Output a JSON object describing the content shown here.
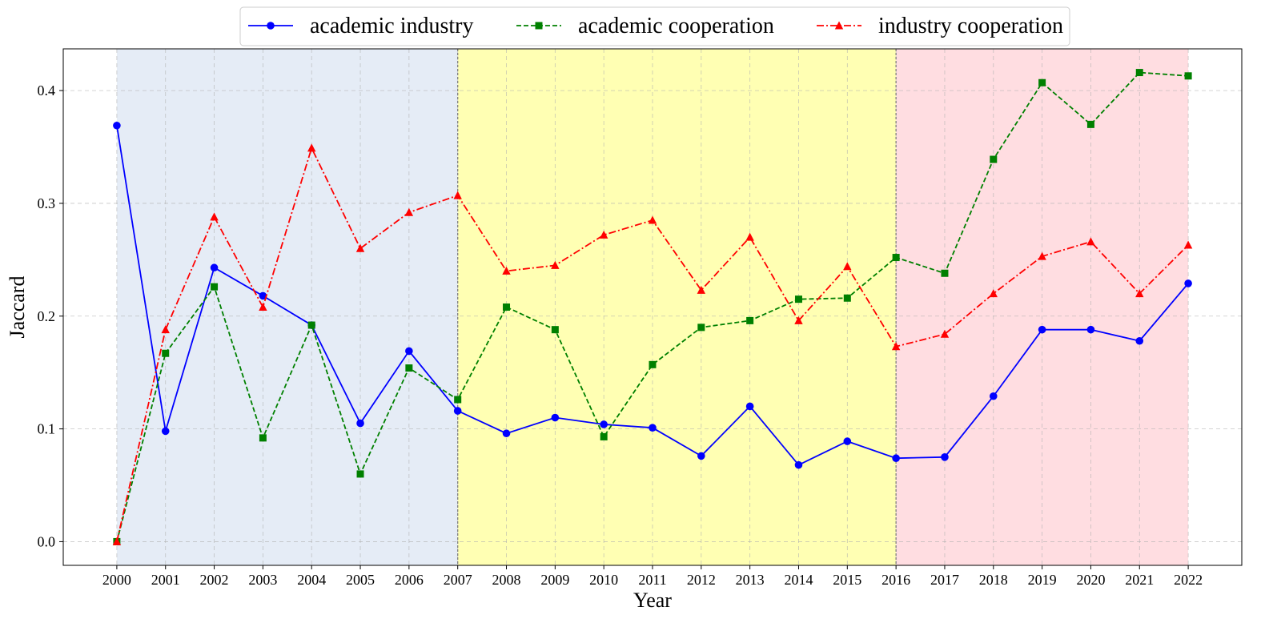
{
  "chart_data": {
    "type": "line",
    "title": "",
    "xlabel": "Year",
    "ylabel": "Jaccard",
    "x": [
      2000,
      2001,
      2002,
      2003,
      2004,
      2005,
      2006,
      2007,
      2008,
      2009,
      2010,
      2011,
      2012,
      2013,
      2014,
      2015,
      2016,
      2017,
      2018,
      2019,
      2020,
      2021,
      2022
    ],
    "xlim": [
      1998.9,
      2023.1
    ],
    "ylim": [
      -0.021,
      0.437
    ],
    "yticks": [
      "0.0",
      "0.1",
      "0.2",
      "0.3",
      "0.4"
    ],
    "ytick_values": [
      0.0,
      0.1,
      0.2,
      0.3,
      0.4
    ],
    "grid": true,
    "legend_position": "top-center, outside plot, single row",
    "shaded_periods": [
      {
        "start": 2000,
        "end": 2007,
        "color": "#e5ecf6"
      },
      {
        "start": 2007,
        "end": 2016,
        "color": "#ffffb3"
      },
      {
        "start": 2016,
        "end": 2022,
        "color": "#ffdde1"
      }
    ],
    "series": [
      {
        "name": "academic industry",
        "color": "#0000ff",
        "linestyle": "solid",
        "marker": "circle",
        "values": [
          0.369,
          0.098,
          0.243,
          0.218,
          0.192,
          0.105,
          0.169,
          0.116,
          0.096,
          0.11,
          0.104,
          0.101,
          0.076,
          0.12,
          0.068,
          0.089,
          0.074,
          0.075,
          0.129,
          0.188,
          0.188,
          0.178,
          0.229
        ]
      },
      {
        "name": "academic cooperation",
        "color": "#008000",
        "linestyle": "dashed",
        "marker": "square",
        "values": [
          0.0,
          0.167,
          0.226,
          0.092,
          0.192,
          0.06,
          0.154,
          0.126,
          0.208,
          0.188,
          0.093,
          0.157,
          0.19,
          0.196,
          0.215,
          0.216,
          0.252,
          0.238,
          0.339,
          0.407,
          0.37,
          0.416,
          0.413
        ]
      },
      {
        "name": "industry cooperation",
        "color": "#ff0000",
        "linestyle": "dashdot",
        "marker": "triangle",
        "values": [
          0.0,
          0.188,
          0.288,
          0.208,
          0.349,
          0.26,
          0.292,
          0.307,
          0.24,
          0.245,
          0.272,
          0.285,
          0.223,
          0.27,
          0.196,
          0.244,
          0.173,
          0.184,
          0.22,
          0.253,
          0.266,
          0.22,
          0.263
        ]
      }
    ]
  }
}
